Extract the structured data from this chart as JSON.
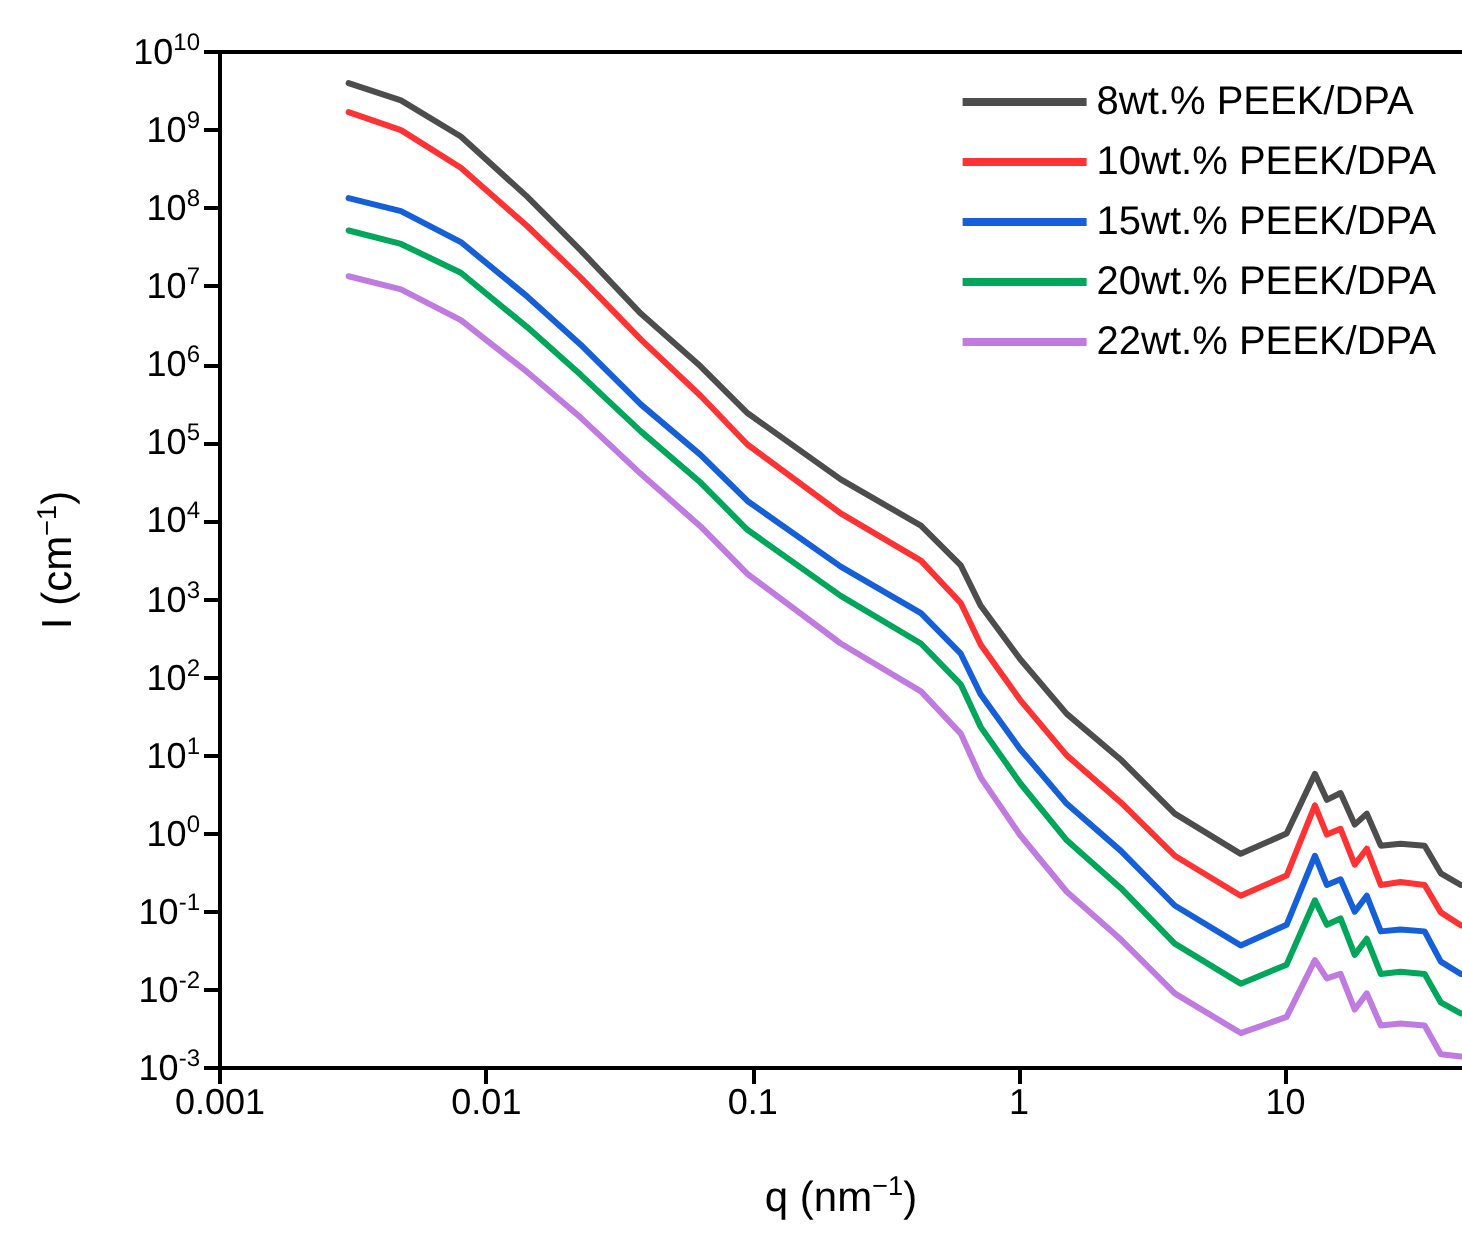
{
  "chart_data": {
    "type": "line",
    "xlabel": "q (nm$^{−1}$)",
    "ylabel": "I (cm$^{−1}$)",
    "log": "xy",
    "legend": "top right",
    "marker": "none",
    "xlim": [
      0.001,
      46
    ],
    "xticks": [
      0.001,
      0.01,
      0.1,
      1,
      10
    ],
    "ylim": [
      0.001,
      10000000000
    ],
    "yticks": [
      {
        "value": 0.001,
        "label": "10$^{-3}$"
      },
      {
        "value": 0.01,
        "label": "10$^{-2}$"
      },
      {
        "value": 0.1,
        "label": "10$^{-1}$"
      },
      {
        "value": 1,
        "label": "10$^{0}$"
      },
      {
        "value": 10,
        "label": "10$^{1}$"
      },
      {
        "value": 100,
        "label": "10$^{2}$"
      },
      {
        "value": 1000,
        "label": "10$^{3}$"
      },
      {
        "value": 10000,
        "label": "10$^{4}$"
      },
      {
        "value": 100000,
        "label": "10$^{5}$"
      },
      {
        "value": 1000000,
        "label": "10$^{6}$"
      },
      {
        "value": 10000000,
        "label": "10$^{7}$"
      },
      {
        "value": 100000000,
        "label": "10$^{8}$"
      },
      {
        "value": 1000000000,
        "label": "10$^{9}$"
      },
      {
        "value": 10000000000,
        "label": "10$^{10}$"
      }
    ],
    "x": [
      0.00304,
      0.00478,
      0.00802,
      0.01426,
      0.0226,
      0.038,
      0.0637,
      0.0955,
      0.214,
      0.428,
      0.604,
      0.718,
      1.01,
      1.51,
      2.41,
      3.84,
      6.79,
      10.1,
      12.9,
      14.3,
      16.1,
      18.2,
      20.2,
      22.8,
      27.0,
      33.3,
      38.3,
      45.5
    ],
    "series": [
      {
        "name": "8wt.% PEEK/DPA",
        "color": "#4d4d4d",
        "values": [
          4000000000.0,
          2400000000.0,
          830000000.0,
          140000000.0,
          29000000.0,
          4500000.0,
          950000.0,
          240000.0,
          34000.0,
          8700.0,
          2700.0,
          820,
          170,
          34,
          8.8,
          1.8,
          0.55,
          1.0,
          5.8,
          2.7,
          3.3,
          1.3,
          1.8,
          0.7,
          0.74,
          0.7,
          0.31,
          0.22
        ]
      },
      {
        "name": "10wt.% PEEK/DPA",
        "color": "#ff3333",
        "values": [
          1700000000.0,
          1000000000.0,
          330000000.0,
          59000000.0,
          13000000.0,
          2100000.0,
          400000.0,
          95000.0,
          12500.0,
          3100.0,
          890,
          260,
          51,
          10,
          2.5,
          0.52,
          0.16,
          0.29,
          2.3,
          0.97,
          1.15,
          0.4,
          0.64,
          0.22,
          0.24,
          0.22,
          0.098,
          0.067
        ]
      },
      {
        "name": "15wt.% PEEK/DPA",
        "color": "#1560d8",
        "values": [
          135000000.0,
          92000000.0,
          37000000.0,
          7400000.0,
          1800000.0,
          310000.0,
          70000.0,
          18000.0,
          2600.0,
          660,
          200,
          60,
          12,
          2.4,
          0.6,
          0.12,
          0.037,
          0.068,
          0.52,
          0.22,
          0.26,
          0.1,
          0.16,
          0.056,
          0.059,
          0.056,
          0.023,
          0.016
        ]
      },
      {
        "name": "20wt.% PEEK/DPA",
        "color": "#00a65a",
        "values": [
          52000000.0,
          35000000.0,
          15000000.0,
          3000000.0,
          740000.0,
          140000.0,
          31000.0,
          7700.0,
          1100.0,
          270,
          81,
          23,
          4.4,
          0.82,
          0.2,
          0.039,
          0.012,
          0.021,
          0.14,
          0.068,
          0.082,
          0.028,
          0.045,
          0.016,
          0.017,
          0.016,
          0.0069,
          0.005
        ]
      },
      {
        "name": "22wt.% PEEK/DPA",
        "color": "#c07be0",
        "values": [
          13500000.0,
          9200000.0,
          3700000.0,
          800000.0,
          210000.0,
          40000.0,
          8500.0,
          2100.0,
          270,
          66,
          19,
          5.2,
          0.95,
          0.18,
          0.044,
          0.009,
          0.0028,
          0.0045,
          0.024,
          0.014,
          0.016,
          0.0056,
          0.009,
          0.0035,
          0.0037,
          0.0035,
          0.0015,
          0.0014
        ]
      }
    ]
  }
}
